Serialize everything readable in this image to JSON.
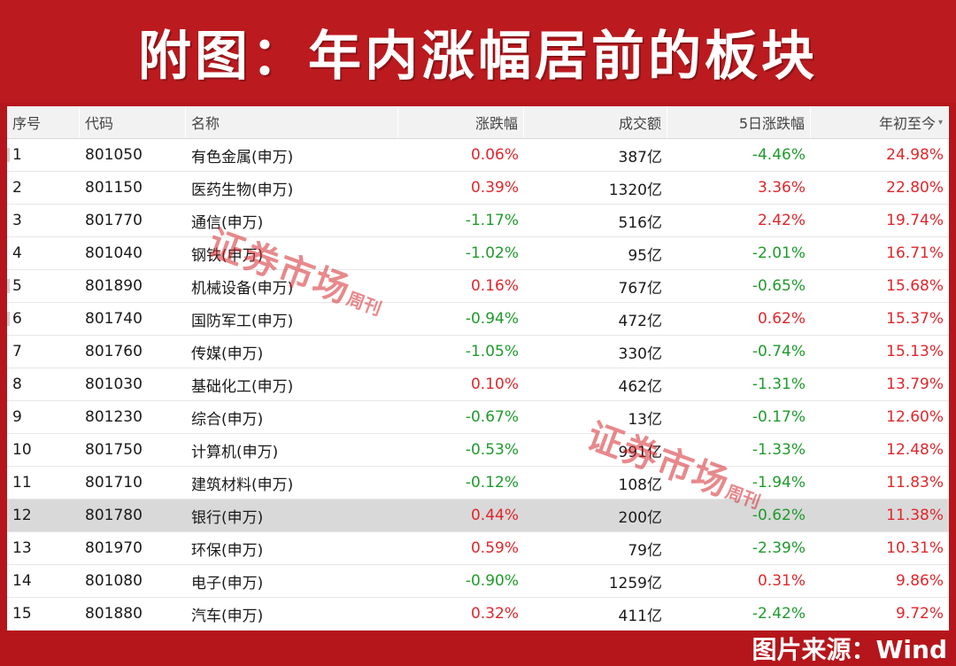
{
  "title": "附图：年内涨幅居前的板块",
  "colors": {
    "frame": "#b5161b",
    "up": "#e0262b",
    "down": "#1f9a2c"
  },
  "table": {
    "headers": [
      "序号",
      "代码",
      "名称",
      "涨跌幅",
      "成交额",
      "5日涨跌幅",
      "年初至今"
    ],
    "sort_icon": "sort-down-icon",
    "rows": [
      [
        "1",
        "801050",
        "有色金属(申万)",
        "0.06%",
        "387亿",
        "-4.46%",
        "24.98%"
      ],
      [
        "2",
        "801150",
        "医药生物(申万)",
        "0.39%",
        "1320亿",
        "3.36%",
        "22.80%"
      ],
      [
        "3",
        "801770",
        "通信(申万)",
        "-1.17%",
        "516亿",
        "2.42%",
        "19.74%"
      ],
      [
        "4",
        "801040",
        "钢铁(申万)",
        "-1.02%",
        "95亿",
        "-2.01%",
        "16.71%"
      ],
      [
        "5",
        "801890",
        "机械设备(申万)",
        "0.16%",
        "767亿",
        "-0.65%",
        "15.68%"
      ],
      [
        "6",
        "801740",
        "国防军工(申万)",
        "-0.94%",
        "472亿",
        "0.62%",
        "15.37%"
      ],
      [
        "7",
        "801760",
        "传媒(申万)",
        "-1.05%",
        "330亿",
        "-0.74%",
        "15.13%"
      ],
      [
        "8",
        "801030",
        "基础化工(申万)",
        "0.10%",
        "462亿",
        "-1.31%",
        "13.79%"
      ],
      [
        "9",
        "801230",
        "综合(申万)",
        "-0.67%",
        "13亿",
        "-0.17%",
        "12.60%"
      ],
      [
        "10",
        "801750",
        "计算机(申万)",
        "-0.53%",
        "991亿",
        "-1.33%",
        "12.48%"
      ],
      [
        "11",
        "801710",
        "建筑材料(申万)",
        "-0.12%",
        "108亿",
        "-1.94%",
        "11.83%"
      ],
      [
        "12",
        "801780",
        "银行(申万)",
        "0.44%",
        "200亿",
        "-0.62%",
        "11.38%"
      ],
      [
        "13",
        "801970",
        "环保(申万)",
        "0.59%",
        "79亿",
        "-2.39%",
        "10.31%"
      ],
      [
        "14",
        "801080",
        "电子(申万)",
        "-0.90%",
        "1259亿",
        "0.31%",
        "9.86%"
      ],
      [
        "15",
        "801880",
        "汽车(申万)",
        "0.32%",
        "411亿",
        "-2.42%",
        "9.72%"
      ]
    ],
    "selected_row": 12
  },
  "watermark": {
    "main": "证券市场",
    "side": "周刊"
  },
  "source": "图片来源：Wind"
}
